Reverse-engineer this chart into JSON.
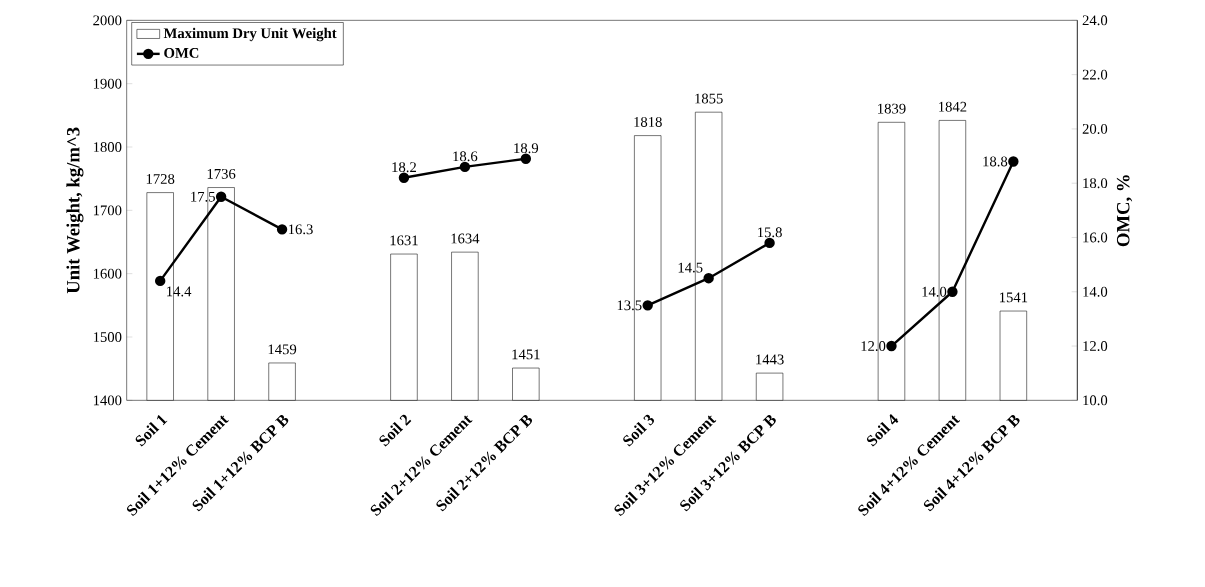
{
  "chart_data": {
    "type": "bar",
    "categories": [
      "Soil 1",
      "Soil 1+12% Cement",
      "Soil 1+12% BCP B",
      null,
      "Soil 2",
      "Soil 2+12% Cement",
      "Soil 2+12% BCP B",
      null,
      "Soil 3",
      "Soil 3+12% Cement",
      "Soil 3+12% BCP B",
      null,
      "Soil 4",
      "Soil 4+12% Cement",
      "Soil 4+12% BCP B"
    ],
    "series": [
      {
        "name": "Maximum Dry Unit Weight",
        "color": "#ffffff",
        "values": [
          1728,
          1736,
          1459,
          null,
          1631,
          1634,
          1451,
          null,
          1818,
          1855,
          1443,
          null,
          1839,
          1842,
          1541
        ],
        "value_labels": [
          "1728",
          "1736",
          "1459",
          null,
          "1631",
          "1634",
          "1451",
          null,
          "1818",
          "1855",
          "1443",
          null,
          "1839",
          "1842",
          "1541"
        ]
      },
      {
        "name": "OMC",
        "type": "line",
        "axis": "y2",
        "color": "#000000",
        "values": [
          14.4,
          17.5,
          16.3,
          null,
          18.2,
          18.6,
          18.9,
          null,
          13.5,
          14.5,
          15.8,
          null,
          12.0,
          14.0,
          18.8
        ],
        "value_labels": [
          "14.4",
          "17.5",
          "16.3",
          null,
          "18.2",
          "18.6",
          "18.9",
          null,
          "13.5",
          "14.5",
          "15.8",
          null,
          "12.0",
          "14.0",
          "18.8"
        ]
      }
    ],
    "ylabel": "Unit Weight, kg/m^3",
    "y2label": "OMC, %",
    "ylim": [
      1400,
      2000
    ],
    "yticks": [
      1400,
      1500,
      1600,
      1700,
      1800,
      1900,
      2000
    ],
    "y2lim": [
      10,
      24
    ],
    "y2ticks": [
      {
        "value": 10,
        "label": "10.0"
      },
      {
        "value": 12,
        "label": "12.0"
      },
      {
        "value": 14,
        "label": "14.0"
      },
      {
        "value": 16,
        "label": "16.0"
      },
      {
        "value": 18,
        "label": "18.0"
      },
      {
        "value": 20,
        "label": "20.0"
      },
      {
        "value": 22,
        "label": "22.0"
      },
      {
        "value": 24,
        "label": "24.0"
      }
    ],
    "legend": "top left",
    "marker": "circle",
    "line_style": "solid"
  }
}
